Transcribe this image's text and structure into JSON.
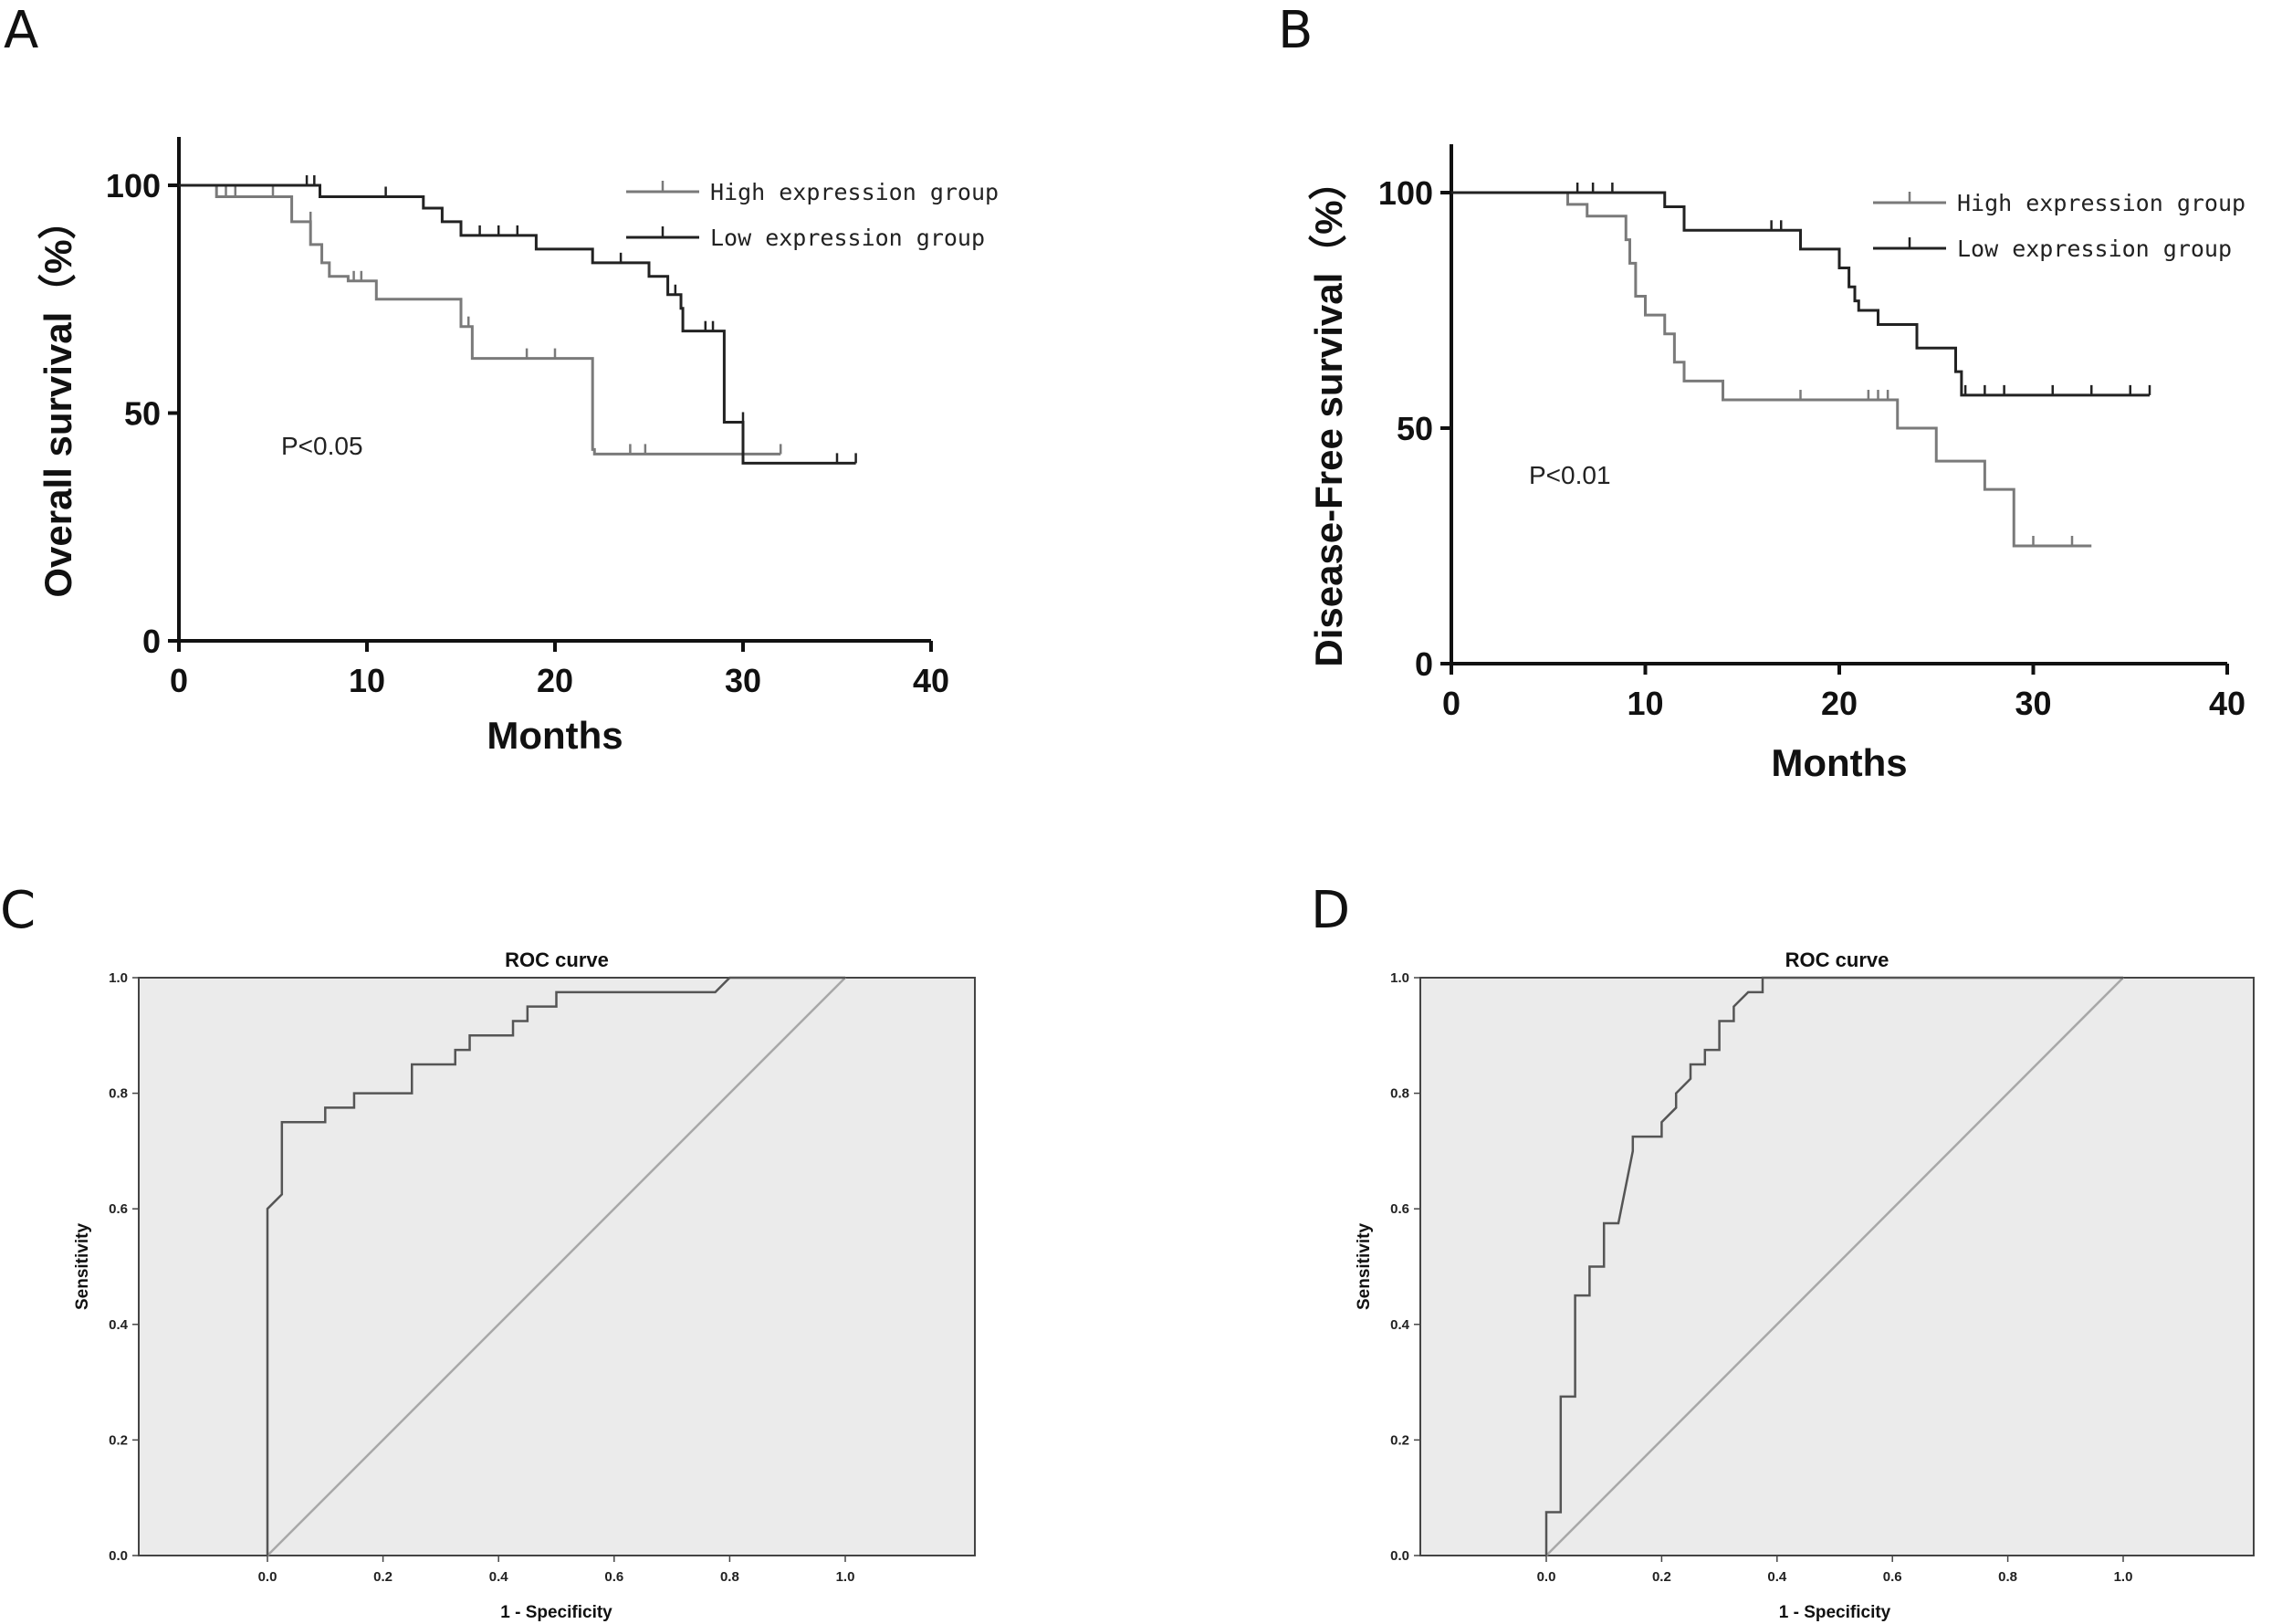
{
  "panels": {
    "A": "A",
    "B": "B",
    "C": "C",
    "D": "D"
  },
  "colors": {
    "high": "#7a7a7a",
    "low": "#222222",
    "roc_curve": "#555555",
    "roc_diagonal": "#a8a8a8",
    "roc_bg": "#ebebeb"
  },
  "chart_data": [
    {
      "id": "A",
      "type": "line",
      "title": "",
      "xlabel": "Months",
      "ylabel": "Overall survival（%）",
      "xlim": [
        0,
        40
      ],
      "ylim": [
        0,
        100
      ],
      "xticks": [
        0,
        10,
        20,
        30,
        40
      ],
      "yticks": [
        0,
        50,
        100
      ],
      "annotation": "P<0.05",
      "legend_position": "top-right",
      "series": [
        {
          "name": "High expression group",
          "color": "#7a7a7a",
          "steps": [
            [
              0,
              100
            ],
            [
              2,
              97.5
            ],
            [
              6,
              92
            ],
            [
              7,
              87
            ],
            [
              7.6,
              83
            ],
            [
              8,
              80
            ],
            [
              9,
              79
            ],
            [
              10.5,
              75
            ],
            [
              15,
              69
            ],
            [
              15.6,
              62
            ],
            [
              22,
              42
            ],
            [
              22.1,
              41
            ],
            [
              32,
              41
            ]
          ],
          "censors": [
            [
              2.5,
              97.5
            ],
            [
              3,
              97.5
            ],
            [
              5,
              97.5
            ],
            [
              7,
              92
            ],
            [
              9.3,
              79
            ],
            [
              9.7,
              79
            ],
            [
              15.4,
              69
            ],
            [
              18.5,
              62
            ],
            [
              20,
              62
            ],
            [
              24,
              41
            ],
            [
              24.8,
              41
            ],
            [
              32,
              41
            ]
          ]
        },
        {
          "name": "Low expression group",
          "color": "#222222",
          "steps": [
            [
              0,
              100
            ],
            [
              7.5,
              97.5
            ],
            [
              13,
              95
            ],
            [
              14,
              92
            ],
            [
              15,
              89
            ],
            [
              19,
              86
            ],
            [
              22,
              83
            ],
            [
              25,
              80
            ],
            [
              26,
              76
            ],
            [
              26.7,
              73
            ],
            [
              26.8,
              68
            ],
            [
              29,
              48
            ],
            [
              30,
              39
            ],
            [
              36,
              39
            ]
          ],
          "censors": [
            [
              6.8,
              100
            ],
            [
              7.2,
              100
            ],
            [
              11,
              97.5
            ],
            [
              16,
              89
            ],
            [
              17,
              89
            ],
            [
              18,
              89
            ],
            [
              23.5,
              83
            ],
            [
              26.4,
              76
            ],
            [
              28,
              68
            ],
            [
              28.4,
              68
            ],
            [
              30,
              48
            ],
            [
              35,
              39
            ],
            [
              36,
              39
            ]
          ]
        }
      ]
    },
    {
      "id": "B",
      "type": "line",
      "title": "",
      "xlabel": "Months",
      "ylabel": "Disease-Free survival（%）",
      "xlim": [
        0,
        40
      ],
      "ylim": [
        0,
        100
      ],
      "xticks": [
        0,
        10,
        20,
        30,
        40
      ],
      "yticks": [
        0,
        50,
        100
      ],
      "annotation": "P<0.01",
      "legend_position": "top-right",
      "series": [
        {
          "name": "High expression group",
          "color": "#7a7a7a",
          "steps": [
            [
              0,
              100
            ],
            [
              6,
              97.5
            ],
            [
              7,
              95
            ],
            [
              9,
              90
            ],
            [
              9.2,
              85
            ],
            [
              9.5,
              78
            ],
            [
              10,
              74
            ],
            [
              11,
              70
            ],
            [
              11.5,
              64
            ],
            [
              12,
              60
            ],
            [
              14,
              56
            ],
            [
              23,
              50
            ],
            [
              25,
              43
            ],
            [
              27.5,
              37
            ],
            [
              29,
              25
            ],
            [
              33,
              25
            ]
          ],
          "censors": [
            [
              12,
              60
            ],
            [
              18,
              56
            ],
            [
              21.5,
              56
            ],
            [
              22,
              56
            ],
            [
              22.5,
              56
            ],
            [
              30,
              25
            ],
            [
              32,
              25
            ]
          ]
        },
        {
          "name": "Low expression group",
          "color": "#222222",
          "steps": [
            [
              0,
              100
            ],
            [
              11,
              97
            ],
            [
              12,
              92
            ],
            [
              18,
              88
            ],
            [
              20,
              84
            ],
            [
              20.5,
              80
            ],
            [
              20.8,
              77
            ],
            [
              21,
              75
            ],
            [
              22,
              72
            ],
            [
              24,
              67
            ],
            [
              26,
              62
            ],
            [
              26.3,
              57
            ],
            [
              36,
              57
            ]
          ],
          "censors": [
            [
              6.5,
              100
            ],
            [
              7.3,
              100
            ],
            [
              8.3,
              100
            ],
            [
              16.5,
              92
            ],
            [
              17,
              92
            ],
            [
              18,
              88
            ],
            [
              20.5,
              80
            ],
            [
              26.5,
              57
            ],
            [
              27.5,
              57
            ],
            [
              28.5,
              57
            ],
            [
              31,
              57
            ],
            [
              33,
              57
            ],
            [
              35,
              57
            ],
            [
              36,
              57
            ]
          ]
        }
      ]
    },
    {
      "id": "C",
      "type": "line",
      "title": "ROC curve",
      "xlabel": "1 - Specificity",
      "ylabel": "Sensitivity",
      "xlim": [
        0,
        1
      ],
      "ylim": [
        0,
        1
      ],
      "xticks": [
        "0.0",
        "0.2",
        "0.4",
        "0.6",
        "0.8",
        "1.0"
      ],
      "yticks": [
        "0.0",
        "0.2",
        "0.4",
        "0.6",
        "0.8",
        "1.0"
      ],
      "curve": [
        [
          0,
          0
        ],
        [
          0,
          0.6
        ],
        [
          0.025,
          0.625
        ],
        [
          0.025,
          0.75
        ],
        [
          0.1,
          0.75
        ],
        [
          0.1,
          0.775
        ],
        [
          0.15,
          0.775
        ],
        [
          0.15,
          0.8
        ],
        [
          0.175,
          0.8
        ],
        [
          0.25,
          0.8
        ],
        [
          0.25,
          0.85
        ],
        [
          0.325,
          0.85
        ],
        [
          0.325,
          0.875
        ],
        [
          0.35,
          0.875
        ],
        [
          0.35,
          0.9
        ],
        [
          0.425,
          0.9
        ],
        [
          0.425,
          0.925
        ],
        [
          0.45,
          0.925
        ],
        [
          0.45,
          0.95
        ],
        [
          0.5,
          0.95
        ],
        [
          0.5,
          0.975
        ],
        [
          0.525,
          0.975
        ],
        [
          0.775,
          0.975
        ],
        [
          0.8,
          1.0
        ],
        [
          1.0,
          1.0
        ]
      ],
      "diagonal": [
        [
          0,
          0
        ],
        [
          1,
          1
        ]
      ]
    },
    {
      "id": "D",
      "type": "line",
      "title": "ROC curve",
      "xlabel": "1 - Specificity",
      "ylabel": "Sensitivity",
      "xlim": [
        0,
        1
      ],
      "ylim": [
        0,
        1
      ],
      "xticks": [
        "0.0",
        "0.2",
        "0.4",
        "0.6",
        "0.8",
        "1.0"
      ],
      "yticks": [
        "0.0",
        "0.2",
        "0.4",
        "0.6",
        "0.8",
        "1.0"
      ],
      "curve": [
        [
          0,
          0
        ],
        [
          0,
          0.075
        ],
        [
          0.025,
          0.075
        ],
        [
          0.025,
          0.275
        ],
        [
          0.05,
          0.275
        ],
        [
          0.05,
          0.45
        ],
        [
          0.075,
          0.45
        ],
        [
          0.075,
          0.5
        ],
        [
          0.1,
          0.5
        ],
        [
          0.1,
          0.525
        ],
        [
          0.1,
          0.575
        ],
        [
          0.125,
          0.575
        ],
        [
          0.15,
          0.7
        ],
        [
          0.15,
          0.725
        ],
        [
          0.2,
          0.725
        ],
        [
          0.2,
          0.75
        ],
        [
          0.225,
          0.775
        ],
        [
          0.225,
          0.8
        ],
        [
          0.25,
          0.825
        ],
        [
          0.25,
          0.85
        ],
        [
          0.275,
          0.85
        ],
        [
          0.275,
          0.875
        ],
        [
          0.3,
          0.875
        ],
        [
          0.3,
          0.925
        ],
        [
          0.325,
          0.925
        ],
        [
          0.325,
          0.95
        ],
        [
          0.35,
          0.975
        ],
        [
          0.375,
          0.975
        ],
        [
          0.375,
          1.0
        ],
        [
          1.0,
          1.0
        ]
      ],
      "diagonal": [
        [
          0,
          0
        ],
        [
          1,
          1
        ]
      ]
    }
  ]
}
